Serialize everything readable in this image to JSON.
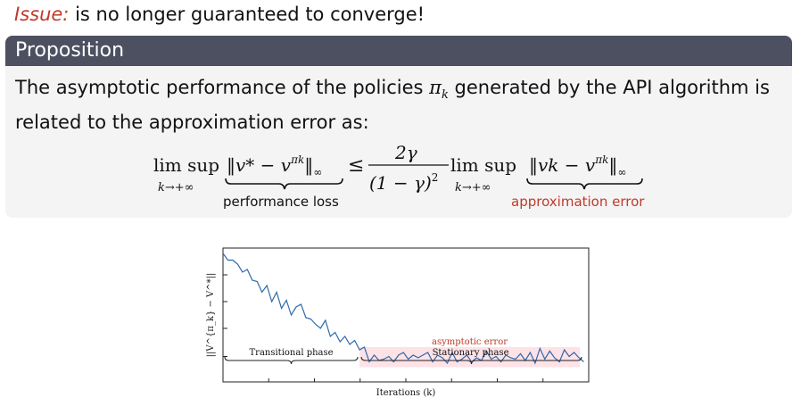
{
  "issue": {
    "label": "Issue:",
    "text": "is no longer guaranteed to converge!"
  },
  "proposition": {
    "title": "Proposition",
    "text_before": "The asymptotic performance of the policies ",
    "pi_symbol": "π",
    "pi_sub": "k",
    "text_after": " generated by the API algorithm is related to the approximation error as:",
    "formula": {
      "lim_sup": "lim sup",
      "lim_sub": "k→+∞",
      "left_norm": "‖v* − v",
      "left_norm_sup": "πk",
      "norm_end": "‖",
      "inf_sub": "∞",
      "leq": "≤",
      "frac_num": "2γ",
      "frac_den": "(1 − γ)",
      "frac_den_sup": "2",
      "right_norm": "‖vk − v",
      "right_norm_sup": "πk",
      "brace_left_label": "performance loss",
      "brace_right_label": "approximation error"
    }
  },
  "chart_data": {
    "type": "line",
    "ylabel": "||V^{π_k} − V^*||",
    "xlabel": "Iterations (k)",
    "annotations": {
      "band_label": "asymptotic error",
      "transitional": "Transitional phase",
      "stationary": "Stationary phase"
    },
    "band": [
      0.22,
      0.52
    ],
    "ylim": [
      0,
      2.0
    ],
    "xlim": [
      0,
      75
    ],
    "x": [
      0,
      1,
      2,
      3,
      4,
      5,
      6,
      7,
      8,
      9,
      10,
      11,
      12,
      13,
      14,
      15,
      16,
      17,
      18,
      19,
      20,
      21,
      22,
      23,
      24,
      25,
      26,
      27,
      28,
      29,
      30,
      31,
      32,
      33,
      34,
      35,
      36,
      37,
      38,
      39,
      40,
      41,
      42,
      43,
      44,
      45,
      46,
      47,
      48,
      49,
      50,
      51,
      52,
      53,
      54,
      55,
      56,
      57,
      58,
      59,
      60,
      61,
      62,
      63,
      64,
      65,
      66,
      67,
      68,
      69,
      70,
      71,
      72,
      73,
      74
    ],
    "y": [
      1.92,
      1.82,
      1.82,
      1.76,
      1.64,
      1.68,
      1.52,
      1.5,
      1.34,
      1.44,
      1.2,
      1.34,
      1.1,
      1.22,
      1.0,
      1.12,
      1.16,
      0.96,
      0.94,
      0.86,
      0.8,
      0.92,
      0.68,
      0.74,
      0.6,
      0.68,
      0.56,
      0.62,
      0.48,
      0.52,
      0.3,
      0.4,
      0.32,
      0.34,
      0.38,
      0.3,
      0.4,
      0.44,
      0.34,
      0.4,
      0.36,
      0.4,
      0.44,
      0.3,
      0.4,
      0.36,
      0.28,
      0.44,
      0.3,
      0.34,
      0.4,
      0.3,
      0.36,
      0.32,
      0.46,
      0.34,
      0.38,
      0.3,
      0.4,
      0.36,
      0.34,
      0.42,
      0.32,
      0.44,
      0.28,
      0.5,
      0.34,
      0.46,
      0.36,
      0.3,
      0.48,
      0.38,
      0.44,
      0.36,
      0.3
    ],
    "stationary_start": 28
  }
}
